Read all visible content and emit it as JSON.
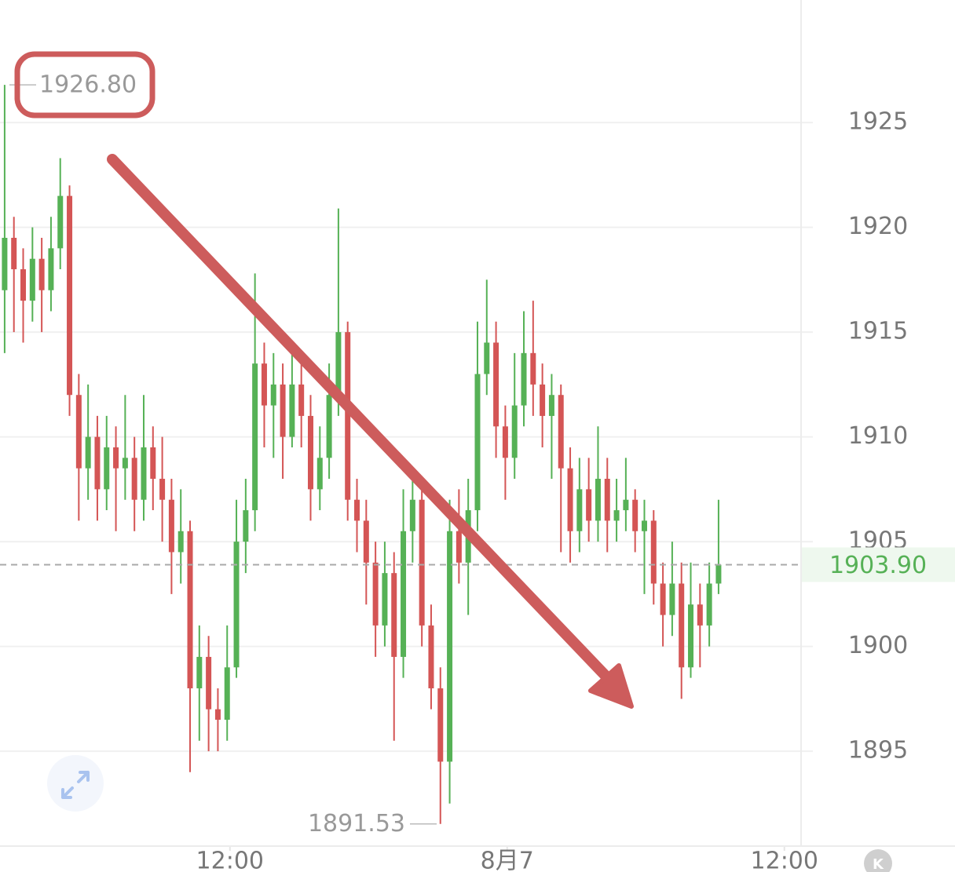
{
  "chart_data": {
    "type": "candlestick",
    "up_color": "#56b156",
    "down_color": "#d45555",
    "ohlc": [
      [
        1917,
        1926.8,
        1914,
        1919.5
      ],
      [
        1919.5,
        1920.5,
        1915,
        1918
      ],
      [
        1918,
        1919,
        1914.5,
        1916.5
      ],
      [
        1916.5,
        1920,
        1915.5,
        1918.5
      ],
      [
        1918.5,
        1919.5,
        1915,
        1917
      ],
      [
        1917,
        1920.5,
        1916,
        1919
      ],
      [
        1919,
        1923.3,
        1918,
        1921.5
      ],
      [
        1921.5,
        1922,
        1911,
        1912
      ],
      [
        1912,
        1913,
        1906,
        1908.5
      ],
      [
        1908.5,
        1912.5,
        1907,
        1910
      ],
      [
        1910,
        1911,
        1906,
        1907.5
      ],
      [
        1907.5,
        1911,
        1906.5,
        1909.5
      ],
      [
        1909.5,
        1910.5,
        1905.5,
        1908.5
      ],
      [
        1908.5,
        1912,
        1907,
        1909
      ],
      [
        1909,
        1910,
        1905.5,
        1907
      ],
      [
        1907,
        1912,
        1906,
        1909.5
      ],
      [
        1909.5,
        1910.5,
        1906.5,
        1908
      ],
      [
        1908,
        1910,
        1905,
        1907
      ],
      [
        1907,
        1908,
        1902.5,
        1904.5
      ],
      [
        1904.5,
        1907.5,
        1903,
        1905.5
      ],
      [
        1905.5,
        1906,
        1894,
        1898
      ],
      [
        1898,
        1901,
        1895.5,
        1899.5
      ],
      [
        1899.5,
        1900.5,
        1895,
        1897
      ],
      [
        1897,
        1898,
        1895,
        1896.5
      ],
      [
        1896.5,
        1901,
        1895.5,
        1899
      ],
      [
        1899,
        1907,
        1898.5,
        1905
      ],
      [
        1905,
        1908,
        1903.5,
        1906.5
      ],
      [
        1906.5,
        1917.8,
        1905.5,
        1913.5
      ],
      [
        1913.5,
        1914.5,
        1909.5,
        1911.5
      ],
      [
        1911.5,
        1914,
        1909,
        1912.5
      ],
      [
        1912.5,
        1913.5,
        1908,
        1910
      ],
      [
        1910,
        1914,
        1909.5,
        1912.5
      ],
      [
        1912.5,
        1913.5,
        1909.5,
        1911
      ],
      [
        1911,
        1912,
        1906,
        1907.5
      ],
      [
        1907.5,
        1910.5,
        1906.5,
        1909
      ],
      [
        1909,
        1913.5,
        1908,
        1912
      ],
      [
        1912,
        1920.9,
        1911,
        1915
      ],
      [
        1915,
        1915.5,
        1906,
        1907
      ],
      [
        1907,
        1908,
        1904.5,
        1906
      ],
      [
        1906,
        1907,
        1902,
        1904
      ],
      [
        1904,
        1905,
        1899.5,
        1901
      ],
      [
        1901,
        1905,
        1900,
        1903.5
      ],
      [
        1903.5,
        1904.5,
        1895.5,
        1899.5
      ],
      [
        1899.5,
        1907.5,
        1898.5,
        1905.5
      ],
      [
        1905.5,
        1908,
        1904,
        1907
      ],
      [
        1907,
        1908,
        1900,
        1901
      ],
      [
        1901,
        1902,
        1897,
        1898
      ],
      [
        1898,
        1899,
        1891.53,
        1894.5
      ],
      [
        1894.5,
        1907,
        1892.5,
        1905.5
      ],
      [
        1905.5,
        1907.5,
        1903,
        1904
      ],
      [
        1904,
        1908,
        1901.5,
        1906.5
      ],
      [
        1906.5,
        1915.5,
        1905.5,
        1913
      ],
      [
        1913,
        1917.5,
        1912,
        1914.5
      ],
      [
        1914.5,
        1915.5,
        1909,
        1910.5
      ],
      [
        1910.5,
        1911.5,
        1907,
        1909
      ],
      [
        1909,
        1914,
        1908,
        1911.5
      ],
      [
        1911.5,
        1916,
        1910.5,
        1914
      ],
      [
        1914,
        1916.5,
        1911,
        1912.5
      ],
      [
        1912.5,
        1913.5,
        1909.5,
        1911
      ],
      [
        1911,
        1913,
        1908,
        1912
      ],
      [
        1912,
        1912.5,
        1904.5,
        1908.5
      ],
      [
        1908.5,
        1909.5,
        1904,
        1905.5
      ],
      [
        1905.5,
        1909,
        1904.5,
        1907.5
      ],
      [
        1907.5,
        1909,
        1905,
        1906
      ],
      [
        1906,
        1910.5,
        1905,
        1908
      ],
      [
        1908,
        1909,
        1904.5,
        1906
      ],
      [
        1906,
        1908,
        1905,
        1906.5
      ],
      [
        1906.5,
        1909,
        1905.5,
        1907
      ],
      [
        1907,
        1907.5,
        1904.5,
        1905.5
      ],
      [
        1905.5,
        1907,
        1902.5,
        1906
      ],
      [
        1906,
        1906.5,
        1902,
        1903
      ],
      [
        1903,
        1904,
        1900,
        1901.5
      ],
      [
        1901.5,
        1905,
        1900.5,
        1903
      ],
      [
        1903,
        1904,
        1897.5,
        1899
      ],
      [
        1899,
        1904,
        1898.5,
        1902
      ],
      [
        1902,
        1903,
        1899,
        1901
      ],
      [
        1901,
        1904,
        1900,
        1903
      ],
      [
        1903,
        1907,
        1902.5,
        1903.9
      ]
    ],
    "xlim": [
      -0.5,
      85.9
    ],
    "xticks": [
      {
        "value": 24.3,
        "label": "12:00"
      },
      {
        "value": 54.2,
        "label": "8月7"
      },
      {
        "value": 84.1,
        "label": "12:00"
      }
    ],
    "ylim": [
      1890.47,
      1930.85
    ],
    "yticks": [
      1925,
      1920,
      1915,
      1910,
      1905,
      1900,
      1895
    ],
    "grid": true,
    "max_label": {
      "value": 1926.8,
      "label": "1926.80"
    },
    "min_label": {
      "value": 1891.53,
      "label": "1891.53"
    },
    "last_price": {
      "value": 1903.9,
      "label": "1903.90"
    },
    "badge": "K"
  }
}
